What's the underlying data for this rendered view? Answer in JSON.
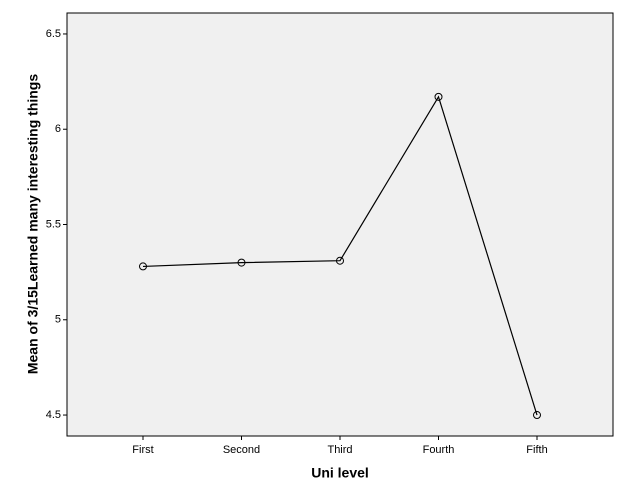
{
  "chart_data": {
    "type": "line",
    "x_label": "Uni level",
    "y_label": "Mean of 3/15Learned many interesting things",
    "categories": [
      "First",
      "Second",
      "Third",
      "Fourth",
      "Fifth"
    ],
    "values": [
      5.28,
      5.3,
      5.31,
      6.17,
      4.5
    ],
    "color": "#000000",
    "ylim": [
      4.39,
      6.61
    ],
    "yticks": [
      4.5,
      5,
      5.5,
      6,
      6.5
    ]
  }
}
